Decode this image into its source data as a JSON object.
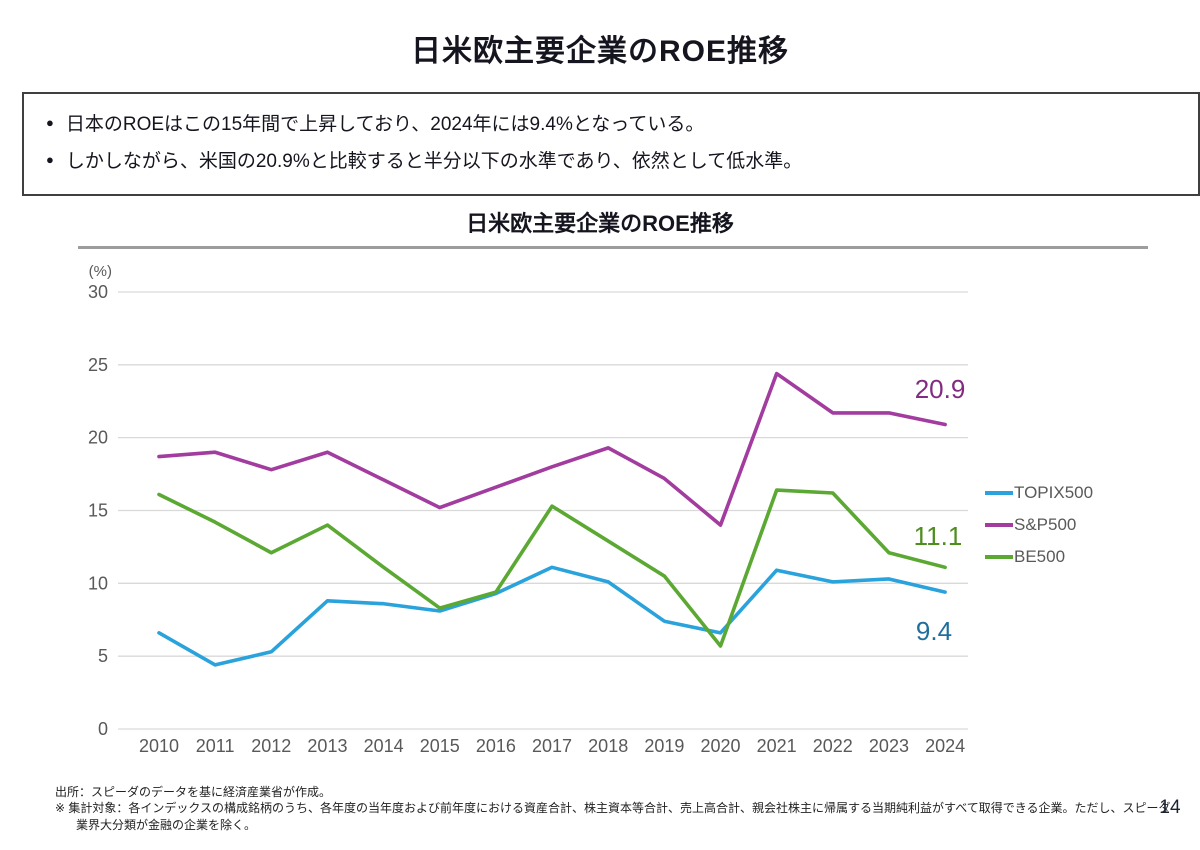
{
  "page": {
    "title": "日米欧主要企業のROE推移",
    "page_number": "14"
  },
  "summary_box": {
    "bullet_glyph": "●",
    "bullets": [
      "日本のROEはこの15年間で上昇しており、2024年には9.4%となっている。",
      "しかしながら、米国の20.9%と比較すると半分以下の水準であり、依然として低水準。"
    ]
  },
  "chart_data": {
    "type": "line",
    "title": "日米欧主要企業のROE推移",
    "unit_label": "(%)",
    "xlabel": "",
    "ylabel": "(%)",
    "ylim": [
      0,
      30
    ],
    "yticks": [
      0,
      5,
      10,
      15,
      20,
      25,
      30
    ],
    "grid": true,
    "legend_position": "right",
    "categories": [
      2010,
      2011,
      2012,
      2013,
      2014,
      2015,
      2016,
      2017,
      2018,
      2019,
      2020,
      2021,
      2022,
      2023,
      2024
    ],
    "series": [
      {
        "name": "TOPIX500",
        "color": "#2aa2db",
        "values": [
          6.6,
          4.4,
          5.3,
          8.8,
          8.6,
          8.1,
          9.3,
          11.1,
          10.1,
          7.4,
          6.6,
          10.9,
          10.1,
          10.3,
          9.4
        ],
        "end_label": "9.4",
        "end_label_color": "#1f6f9e",
        "end_label_side": "below"
      },
      {
        "name": "S&P500",
        "color": "#a23c9f",
        "values": [
          18.7,
          19.0,
          17.8,
          19.0,
          17.1,
          15.2,
          16.6,
          18.0,
          19.3,
          17.2,
          14.0,
          24.4,
          21.7,
          21.7,
          20.9
        ],
        "end_label": "20.9",
        "end_label_color": "#822b80",
        "end_label_side": "above"
      },
      {
        "name": "BE500",
        "color": "#5ba833",
        "values": [
          16.1,
          14.2,
          12.1,
          14.0,
          11.1,
          8.3,
          9.4,
          15.3,
          12.9,
          10.5,
          5.7,
          16.4,
          16.2,
          12.1,
          11.1
        ],
        "end_label": "11.1",
        "end_label_color": "#4e8d20",
        "end_label_side": "above"
      }
    ]
  },
  "footer": {
    "source": "出所：スピーダのデータを基に経済産業省が作成。",
    "note": "※ 集計対象：各インデックスの構成銘柄のうち、各年度の当年度および前年度における資産合計、株主資本等合計、売上高合計、親会社株主に帰属する当期純利益がすべて取得できる企業。ただし、スピーダ業界大分類が金融の企業を除く。"
  }
}
